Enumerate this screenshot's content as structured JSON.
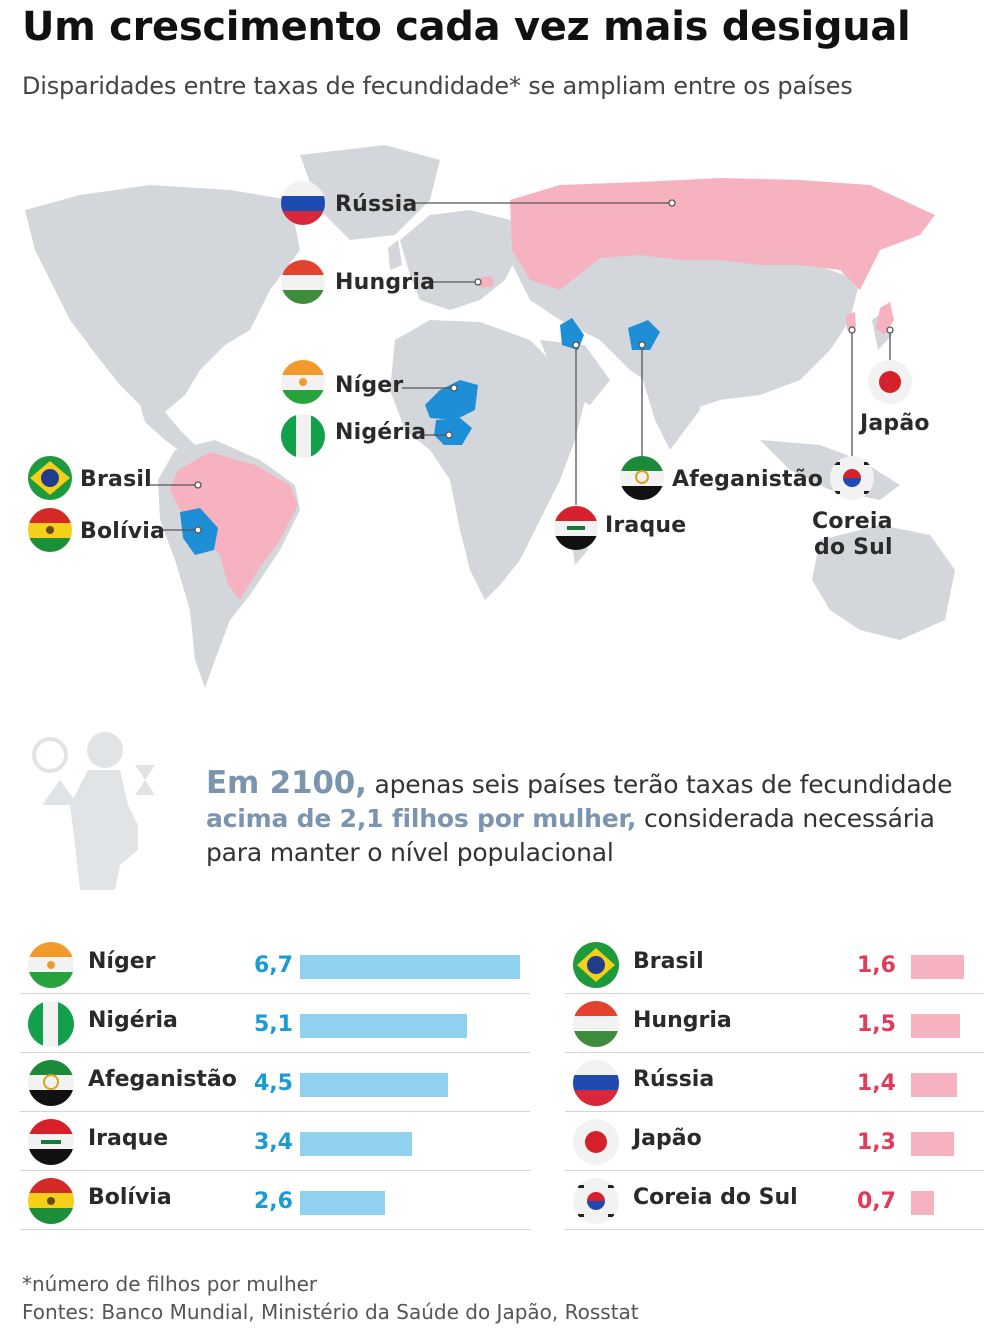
{
  "title": "Um crescimento cada vez mais desigual",
  "subtitle": "Disparidades entre taxas de fecundidade* se ampliam entre os países",
  "map": {
    "labels": {
      "russia": "Rússia",
      "hungria": "Hungria",
      "niger": "Níger",
      "nigeria": "Nigéria",
      "brasil": "Brasil",
      "bolivia": "Bolívia",
      "japao": "Japão",
      "afeganistao": "Afeganistão",
      "iraque": "Iraque",
      "coreia_1": "Coreia",
      "coreia_2": "do Sul"
    },
    "colors": {
      "land": "#d3d7db",
      "high": "#1e8fd6",
      "low": "#f7b2c0"
    }
  },
  "info": {
    "year": "Em 2100,",
    "part1": " apenas seis países terão taxas de fecundidade ",
    "highlight": "acima de 2,1 filhos por mulher,",
    "part2": " considerada necessária para manter o nível populacional"
  },
  "chart_data": {
    "type": "bar",
    "series": [
      {
        "name": "",
        "categories": [
          "Níger",
          "Nigéria",
          "Afeganistão",
          "Iraque",
          "Bolívia"
        ],
        "values": [
          6.7,
          5.1,
          4.5,
          3.4,
          2.6
        ],
        "labels": [
          "6,7",
          "5,1",
          "4,5",
          "3,4",
          "2,6"
        ],
        "color": "#8fd1ee",
        "value_color": "#1a9ad6"
      },
      {
        "name": "",
        "categories": [
          "Brasil",
          "Hungria",
          "Rússia",
          "Japão",
          "Coreia do Sul"
        ],
        "values": [
          1.6,
          1.5,
          1.4,
          1.3,
          0.7
        ],
        "labels": [
          "1,6",
          "1,5",
          "1,4",
          "1,3",
          "0,7"
        ],
        "color": "#f7b2c0",
        "value_color": "#e23a5a"
      }
    ],
    "xlim": [
      0,
      6.7
    ]
  },
  "footnote": {
    "note": "*número de filhos por mulher",
    "sources": "Fontes: Banco Mundial, Ministério da Saúde do Japão, Rosstat"
  }
}
